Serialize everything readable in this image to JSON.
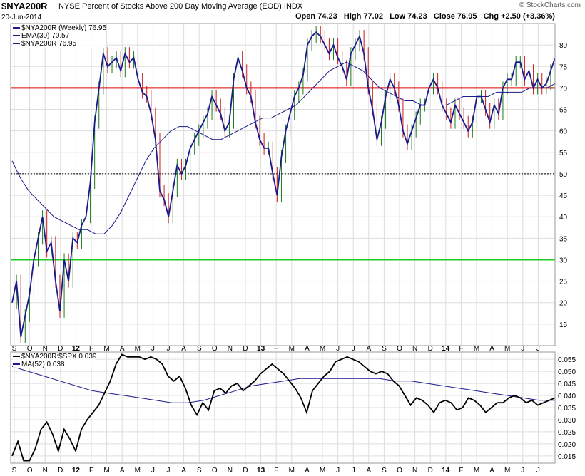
{
  "header": {
    "ticker": "$NYA200R",
    "description": "NYSE Percent of Stocks Above 200 Day Moving Average (EOD)",
    "exchange": "INDX",
    "date": "20-Jun-2014",
    "open_label": "Open",
    "open": "74.23",
    "high_label": "High",
    "high": "77.02",
    "low_label": "Low",
    "low": "74.23",
    "close_label": "Close",
    "close": "76.95",
    "chg_label": "Chg",
    "chg": "+2.50 (+3.36%)",
    "brand": "© StockCharts.com"
  },
  "colors": {
    "price": "#1a1a8c",
    "up_bar": "#1a7a1a",
    "down_bar": "#cc1a1a",
    "ema": "#1a1a8c",
    "red_line": "#e00000",
    "green_line": "#22cc22",
    "ratio": "#000000",
    "ratio_ma": "#1a1a8c",
    "grid": "#dddddd"
  },
  "chart_data": [
    {
      "type": "line",
      "title": "$NYA200R NYSE Percent of Stocks Above 200 Day Moving Average (EOD) INDX",
      "legend": [
        {
          "label": "$NYA200R (Weekly) 76.95",
          "color": "#1a1a8c"
        },
        {
          "label": "EMA(30) 70.57",
          "color": "#1a1a8c"
        },
        {
          "label": "$NYA200R 76.95",
          "color": "#1a1a8c"
        }
      ],
      "legend_position": "top-left",
      "x_tick_labels": [
        "S",
        "O",
        "N",
        "D",
        "12",
        "F",
        "M",
        "A",
        "M",
        "J",
        "J",
        "A",
        "S",
        "O",
        "N",
        "D",
        "13",
        "F",
        "M",
        "A",
        "M",
        "J",
        "J",
        "A",
        "S",
        "O",
        "N",
        "D",
        "14",
        "F",
        "M",
        "A",
        "M",
        "J",
        "J"
      ],
      "ylim": [
        10,
        85
      ],
      "y_ticks": [
        15,
        20,
        25,
        30,
        35,
        40,
        45,
        50,
        55,
        60,
        65,
        70,
        75,
        80
      ],
      "y_axis_side": "right",
      "grid": true,
      "reference_lines": [
        {
          "value": 70,
          "color": "#e00000",
          "style": "solid"
        },
        {
          "value": 50,
          "color": "#000000",
          "style": "dotted"
        },
        {
          "value": 30,
          "color": "#22cc22",
          "style": "solid"
        }
      ],
      "series": [
        {
          "name": "$NYA200R",
          "style": "line",
          "values": [
            20,
            25,
            12,
            17,
            22,
            30,
            35,
            40,
            32,
            34,
            25,
            18,
            30,
            25,
            35,
            34,
            38,
            40,
            48,
            62,
            70,
            78,
            75,
            76,
            77,
            74,
            78,
            76,
            77,
            72,
            69,
            68,
            64,
            58,
            46,
            44,
            40,
            46,
            52,
            50,
            52,
            56,
            58,
            60,
            62,
            64,
            68,
            66,
            64,
            60,
            62,
            72,
            77,
            74,
            70,
            68,
            62,
            58,
            56,
            56,
            50,
            45,
            54,
            60,
            64,
            68,
            70,
            73,
            80,
            82,
            83,
            82,
            80,
            78,
            80,
            77,
            75,
            72,
            78,
            80,
            82,
            78,
            70,
            65,
            58,
            62,
            68,
            72,
            70,
            66,
            60,
            57,
            60,
            63,
            66,
            66,
            70,
            72,
            70,
            66,
            64,
            62,
            66,
            64,
            62,
            60,
            62,
            68,
            68,
            65,
            62,
            66,
            64,
            70,
            72,
            72,
            76,
            76,
            72,
            74,
            70,
            72,
            70,
            71,
            74,
            77
          ]
        },
        {
          "name": "EMA(30)",
          "style": "line",
          "values": [
            53,
            49,
            46,
            44,
            42,
            40,
            39,
            38,
            37,
            37,
            36,
            36,
            38,
            41,
            45,
            49,
            53,
            56,
            58,
            60,
            61,
            61,
            60,
            59,
            58,
            58,
            59,
            60,
            61,
            62,
            63,
            63,
            64,
            65,
            66,
            68,
            70,
            72,
            74,
            75,
            76,
            75,
            74,
            72,
            70,
            69,
            68,
            67,
            67,
            66,
            66,
            66,
            66,
            67,
            68,
            68,
            68,
            68,
            69,
            69,
            69,
            69,
            70,
            70,
            70,
            71
          ]
        },
        {
          "name": "OHLC",
          "style": "bars",
          "values": []
        }
      ]
    },
    {
      "type": "line",
      "title": "$NYA200R:$SPX",
      "legend": [
        {
          "label": "$NYA200R:$SPX 0.039",
          "color": "#000000"
        },
        {
          "label": "MA(52) 0.038",
          "color": "#1a1a8c"
        }
      ],
      "legend_position": "top-left",
      "x_tick_labels": [
        "S",
        "O",
        "N",
        "D",
        "12",
        "F",
        "M",
        "A",
        "M",
        "J",
        "J",
        "A",
        "S",
        "O",
        "N",
        "D",
        "13",
        "F",
        "M",
        "A",
        "M",
        "J",
        "J",
        "A",
        "S",
        "O",
        "N",
        "D",
        "14",
        "F",
        "M",
        "A",
        "M",
        "J",
        "J"
      ],
      "ylim": [
        0.012,
        0.058
      ],
      "y_ticks": [
        0.015,
        0.02,
        0.025,
        0.03,
        0.035,
        0.04,
        0.045,
        0.05,
        0.055
      ],
      "y_axis_side": "right",
      "grid": true,
      "series": [
        {
          "name": "$NYA200R:$SPX",
          "values": [
            0.015,
            0.021,
            0.013,
            0.013,
            0.018,
            0.026,
            0.029,
            0.024,
            0.017,
            0.026,
            0.022,
            0.017,
            0.026,
            0.03,
            0.033,
            0.036,
            0.041,
            0.046,
            0.053,
            0.057,
            0.056,
            0.056,
            0.056,
            0.055,
            0.056,
            0.055,
            0.053,
            0.048,
            0.046,
            0.048,
            0.043,
            0.036,
            0.032,
            0.037,
            0.034,
            0.042,
            0.043,
            0.041,
            0.044,
            0.045,
            0.042,
            0.044,
            0.046,
            0.049,
            0.051,
            0.053,
            0.051,
            0.049,
            0.046,
            0.043,
            0.039,
            0.033,
            0.042,
            0.045,
            0.048,
            0.05,
            0.054,
            0.055,
            0.056,
            0.055,
            0.054,
            0.052,
            0.05,
            0.049,
            0.05,
            0.049,
            0.046,
            0.044,
            0.04,
            0.036,
            0.039,
            0.038,
            0.036,
            0.033,
            0.037,
            0.038,
            0.037,
            0.034,
            0.035,
            0.039,
            0.038,
            0.036,
            0.033,
            0.035,
            0.037,
            0.037,
            0.039,
            0.04,
            0.039,
            0.037,
            0.038,
            0.036,
            0.037,
            0.038,
            0.039
          ]
        },
        {
          "name": "MA(52)",
          "values": [
            0.052,
            0.05,
            0.048,
            0.046,
            0.044,
            0.042,
            0.041,
            0.04,
            0.039,
            0.038,
            0.037,
            0.037,
            0.038,
            0.04,
            0.042,
            0.044,
            0.045,
            0.046,
            0.047,
            0.047,
            0.047,
            0.047,
            0.047,
            0.047,
            0.046,
            0.046,
            0.045,
            0.044,
            0.043,
            0.042,
            0.041,
            0.04,
            0.039,
            0.038,
            0.038
          ]
        }
      ]
    }
  ]
}
